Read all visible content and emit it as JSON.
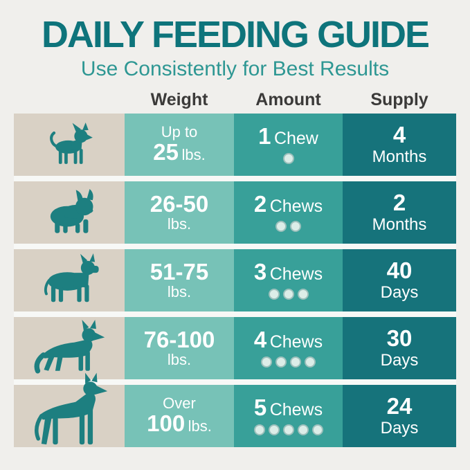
{
  "page": {
    "title": "DAILY FEEDING GUIDE",
    "subtitle": "Use Consistently for Best Results"
  },
  "table": {
    "headers": [
      "Weight",
      "Amount",
      "Supply"
    ],
    "rows": [
      {
        "breed": "chihuahua",
        "weight_prefix": "Up to",
        "weight_value": "25",
        "weight_unit": "lbs.",
        "amount_value": "1",
        "amount_word": "Chew",
        "amount_dots": 1,
        "supply_value": "4",
        "supply_unit": "Months"
      },
      {
        "breed": "french-bulldog",
        "weight_prefix": "",
        "weight_value": "26-50",
        "weight_unit": "lbs.",
        "amount_value": "2",
        "amount_word": "Chews",
        "amount_dots": 2,
        "supply_value": "2",
        "supply_unit": "Months"
      },
      {
        "breed": "boxer",
        "weight_prefix": "",
        "weight_value": "51-75",
        "weight_unit": "lbs.",
        "amount_value": "3",
        "amount_word": "Chews",
        "amount_dots": 3,
        "supply_value": "40",
        "supply_unit": "Days"
      },
      {
        "breed": "german-shepherd",
        "weight_prefix": "",
        "weight_value": "76-100",
        "weight_unit": "lbs.",
        "amount_value": "4",
        "amount_word": "Chews",
        "amount_dots": 4,
        "supply_value": "30",
        "supply_unit": "Days"
      },
      {
        "breed": "great-dane",
        "weight_prefix": "Over",
        "weight_value": "100",
        "weight_unit": "lbs.",
        "amount_value": "5",
        "amount_word": "Chews",
        "amount_dots": 5,
        "supply_value": "24",
        "supply_unit": "Days"
      }
    ]
  },
  "colors": {
    "background": "#F0EFEC",
    "title": "#0E747B",
    "subtitle": "#2E9793",
    "header_text": "#3B3A39",
    "dog_cell_bg": "#D9D1C5",
    "weight_cell_bg": "#77C2B7",
    "amount_cell_bg": "#38A099",
    "supply_cell_bg": "#16737B",
    "cell_text": "#FFFFFF",
    "dot_fill": "#DCEDE8",
    "dog_silhouette": "#1D7F80",
    "row_gap": "#F7F8F6"
  }
}
